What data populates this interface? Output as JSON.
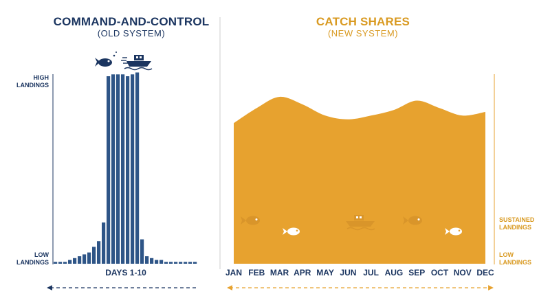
{
  "left": {
    "title": "COMMAND-AND-CONTROL",
    "subtitle": "(OLD SYSTEM)",
    "y_high_label": [
      "HIGH",
      "LANDINGS"
    ],
    "y_low_label": [
      "LOW",
      "LANDINGS"
    ],
    "x_label": "DAYS 1-10"
  },
  "right": {
    "title": "CATCH SHARES",
    "subtitle": "(NEW SYSTEM)",
    "sustained_label": [
      "SUSTAINED",
      "LANDINGS"
    ],
    "low_label": [
      "LOW",
      "LANDINGS"
    ],
    "months": [
      "JAN",
      "FEB",
      "MAR",
      "APR",
      "MAY",
      "JUN",
      "JUL",
      "AUG",
      "SEP",
      "OCT",
      "NOV",
      "DEC"
    ]
  },
  "colors": {
    "navy": "#1b3560",
    "bar": "#2e5587",
    "gold": "#e7a22f",
    "gold_text": "#d99a22",
    "divider": "#cfcfcf"
  },
  "icons": [
    "fish-icon",
    "boat-icon"
  ],
  "chart_data": [
    {
      "type": "bar",
      "title": "COMMAND-AND-CONTROL",
      "xlabel": "DAYS 1-10",
      "ylabel": "",
      "ylim": [
        0,
        100
      ],
      "values": [
        1,
        1,
        1,
        2,
        3,
        4,
        5,
        6,
        9,
        12,
        22,
        100,
        101,
        101,
        101,
        100,
        101,
        102,
        13,
        4,
        3,
        2,
        2,
        1,
        1,
        1,
        1,
        1,
        1,
        1
      ]
    },
    {
      "type": "area",
      "title": "CATCH SHARES",
      "categories": [
        "JAN",
        "FEB",
        "MAR",
        "APR",
        "MAY",
        "JUN",
        "JUL",
        "AUG",
        "SEP",
        "OCT",
        "NOV",
        "DEC"
      ],
      "ylim": [
        0,
        100
      ],
      "values": [
        75,
        83,
        89,
        85,
        79,
        77,
        79,
        82,
        87,
        83,
        79,
        81
      ]
    }
  ]
}
